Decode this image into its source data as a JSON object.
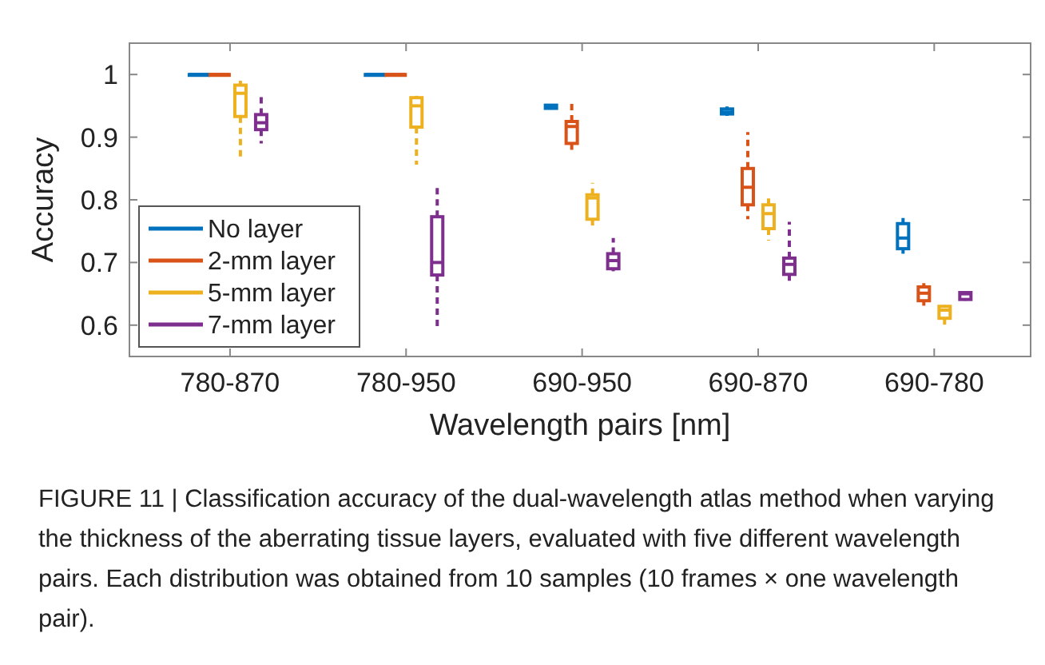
{
  "chart_data": {
    "type": "box",
    "xlabel": "Wavelength pairs [nm]",
    "ylabel": "Accuracy",
    "categories": [
      "780-870",
      "780-950",
      "690-950",
      "690-870",
      "690-780"
    ],
    "ylim": [
      0.55,
      1.05
    ],
    "yticks": [
      0.6,
      0.7,
      0.8,
      0.9,
      1
    ],
    "legend": "bottom left",
    "grid": false,
    "annotations": [
      "FIGURE 11 | Classification accuracy of the dual-wavelength atlas method when varying the thickness of the aberrating tissue layers, evaluated with five different wavelength pairs. Each distribution was obtained from 10 samples (10 frames × one wavelength pair)."
    ],
    "series": [
      {
        "name": "No layer",
        "color": "#0072bd",
        "boxes": [
          {
            "low": 1,
            "q1": 1,
            "median": 1,
            "q3": 1,
            "high": 1
          },
          {
            "low": 1,
            "q1": 1,
            "median": 1,
            "q3": 1,
            "high": 1
          },
          {
            "low": 0.944,
            "q1": 0.946,
            "median": 0.949,
            "q3": 0.951,
            "high": 0.953
          },
          {
            "low": 0.934,
            "q1": 0.937,
            "median": 0.94,
            "q3": 0.945,
            "high": 0.949
          },
          {
            "low": 0.714,
            "q1": 0.722,
            "median": 0.739,
            "q3": 0.762,
            "high": 0.771
          }
        ]
      },
      {
        "name": "2-mm layer",
        "color": "#d95319",
        "boxes": [
          {
            "low": 1,
            "q1": 1,
            "median": 1,
            "q3": 1,
            "high": 1
          },
          {
            "low": 1,
            "q1": 1,
            "median": 1,
            "q3": 1,
            "high": 1
          },
          {
            "low": 0.873,
            "q1": 0.89,
            "median": 0.917,
            "q3": 0.925,
            "high": 0.959
          },
          {
            "low": 0.769,
            "q1": 0.792,
            "median": 0.82,
            "q3": 0.85,
            "high": 0.908
          },
          {
            "low": 0.631,
            "q1": 0.639,
            "median": 0.651,
            "q3": 0.661,
            "high": 0.667
          }
        ]
      },
      {
        "name": "5-mm layer",
        "color": "#edb120",
        "boxes": [
          {
            "low": 0.863,
            "q1": 0.933,
            "median": 0.97,
            "q3": 0.983,
            "high": 0.99
          },
          {
            "low": 0.856,
            "q1": 0.916,
            "median": 0.95,
            "q3": 0.963,
            "high": 0.966
          },
          {
            "low": 0.759,
            "q1": 0.769,
            "median": 0.803,
            "q3": 0.808,
            "high": 0.827
          },
          {
            "low": 0.735,
            "q1": 0.754,
            "median": 0.778,
            "q3": 0.792,
            "high": 0.803
          },
          {
            "low": 0.594,
            "q1": 0.611,
            "median": 0.624,
            "q3": 0.63,
            "high": 0.632
          }
        ]
      },
      {
        "name": "7-mm layer",
        "color": "#7e2f8e",
        "boxes": [
          {
            "low": 0.89,
            "q1": 0.912,
            "median": 0.923,
            "q3": 0.936,
            "high": 0.97
          },
          {
            "low": 0.594,
            "q1": 0.68,
            "median": 0.7,
            "q3": 0.773,
            "high": 0.826
          },
          {
            "low": 0.686,
            "q1": 0.69,
            "median": 0.703,
            "q3": 0.714,
            "high": 0.739
          },
          {
            "low": 0.665,
            "q1": 0.681,
            "median": 0.697,
            "q3": 0.707,
            "high": 0.765
          },
          {
            "low": 0.639,
            "q1": 0.641,
            "median": 0.65,
            "q3": 0.652,
            "high": 0.653
          }
        ]
      }
    ]
  }
}
